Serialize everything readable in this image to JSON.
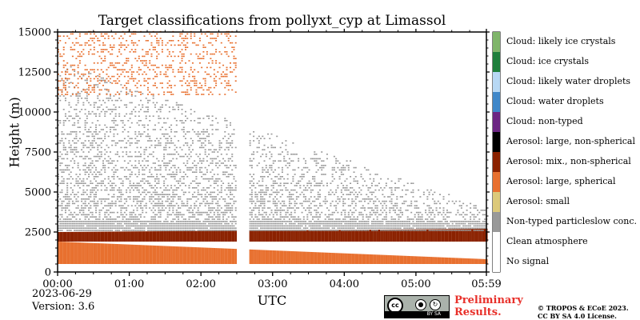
{
  "chart_data": {
    "type": "heatmap",
    "title": "Target classifications from pollyxt_cyp at Limassol",
    "xlabel": "UTC",
    "ylabel": "Height (m)",
    "xlim": [
      "00:00",
      "05:59"
    ],
    "ylim": [
      0,
      15000
    ],
    "x_ticks": [
      "00:00",
      "01:00",
      "02:00",
      "03:00",
      "04:00",
      "05:00",
      "05:59"
    ],
    "y_ticks": [
      "0",
      "2500",
      "5000",
      "7500",
      "10000",
      "12500",
      "15000"
    ],
    "data_gap": {
      "start": "02:30",
      "end": "02:40"
    },
    "layers": [
      {
        "class": "Aerosol: large, spherical",
        "from": "00:00",
        "to": "05:59",
        "bottom_m": 500,
        "top_m": 1900,
        "top_end_m": 800
      },
      {
        "class": "Aerosol: mix., non-spherical",
        "from": "00:00",
        "to": "05:59",
        "bottom_m": 1900,
        "top_m": 2500,
        "top_end_m": 2700
      },
      {
        "class": "Non-typed particleslow conc.",
        "from": "00:00",
        "to": "05:59",
        "bottom_m": 2500,
        "top_m": 13000,
        "top_end_m": 4000
      },
      {
        "class": "Aerosol: large, spherical",
        "from": "00:00",
        "to": "02:30",
        "bottom_m": 11000,
        "top_m": 15000
      }
    ],
    "legend": [
      {
        "label": "Cloud: likely ice crystals",
        "color": "#7fb56a"
      },
      {
        "label": "Cloud: ice crystals",
        "color": "#1e7f3c"
      },
      {
        "label": "Cloud: likely water droplets",
        "color": "#b7d8f4"
      },
      {
        "label": "Cloud: water droplets",
        "color": "#3f87c9"
      },
      {
        "label": "Cloud: non-typed",
        "color": "#6c2583"
      },
      {
        "label": "Aerosol: large, non-spherical",
        "color": "#000000"
      },
      {
        "label": "Aerosol: mix., non-spherical",
        "color": "#8b2200"
      },
      {
        "label": "Aerosol: large, spherical",
        "color": "#e8702f"
      },
      {
        "label": "Aerosol: small",
        "color": "#dcc97a"
      },
      {
        "label": "Non-typed particleslow conc.",
        "color": "#999999"
      },
      {
        "label": "Clean atmosphere",
        "color": "#ffffff"
      },
      {
        "label": "No signal",
        "color": "#ffffff"
      }
    ]
  },
  "footer": {
    "date": "2023-06-29",
    "version": "Version: 3.6",
    "preliminary_line1": "Preliminary",
    "preliminary_line2": "Results.",
    "copyright_line1": "© TROPOS & ECoE 2023.",
    "copyright_line2": "CC BY SA 4.0 License.",
    "cc_badge_text": "BY SA"
  }
}
